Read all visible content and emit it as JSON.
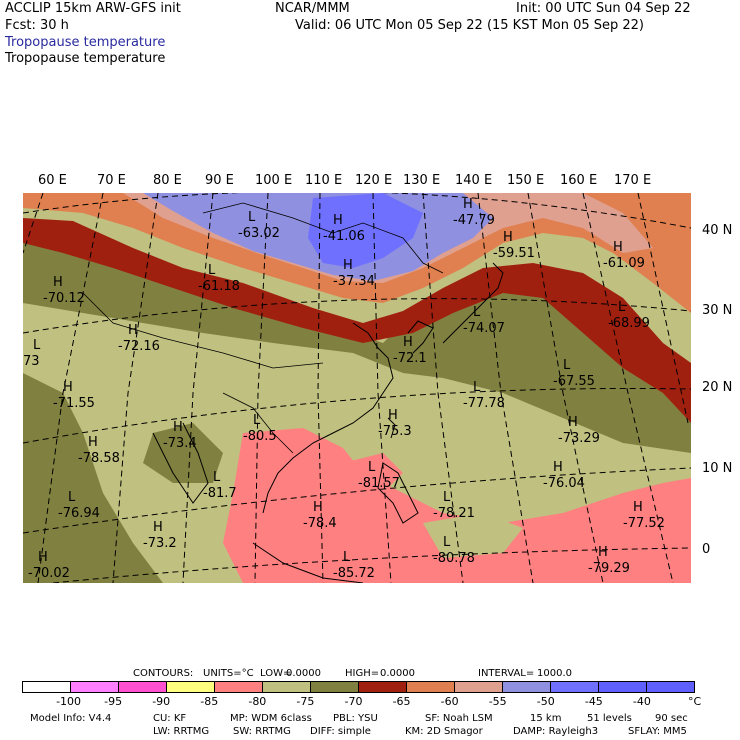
{
  "header": {
    "line1_left": "ACCLIP 15km ARW-GFS init",
    "line1_center": "NCAR/MMM",
    "line1_right": "Init: 00 UTC Sun 04 Sep 22",
    "line2_left": "Fcst:   30 h",
    "line2_right": "Valid: 06 UTC Mon 05 Sep 22 (15 KST Mon 05 Sep 22)",
    "field_title_blue": "Tropopause temperature",
    "field_title_black": "Tropopause temperature"
  },
  "lon_labels": [
    "60 E",
    "70 E",
    "80 E",
    "90 E",
    "100 E",
    "110 E",
    "120 E",
    "130 E",
    "140 E",
    "150 E",
    "160 E",
    "170 E"
  ],
  "lat_labels": [
    "40 N",
    "30 N",
    "20 N",
    "10 N",
    "0"
  ],
  "extrema": [
    {
      "type": "L",
      "value": "-63.02"
    },
    {
      "type": "H",
      "value": "-41.06"
    },
    {
      "type": "H",
      "value": "-37.34"
    },
    {
      "type": "H",
      "value": "-47.79"
    },
    {
      "type": "H",
      "value": "-59.51"
    },
    {
      "type": "H",
      "value": "-61.09"
    },
    {
      "type": "H",
      "value": "-70.12"
    },
    {
      "type": "L",
      "value": "-61.18"
    },
    {
      "type": "L",
      "value": "-68.99"
    },
    {
      "type": "L",
      "value": "-74.07"
    },
    {
      "type": "H",
      "value": "-72.16"
    },
    {
      "type": "L",
      "value": "-67.55"
    },
    {
      "type": "H",
      "value": "-72.1"
    },
    {
      "type": "L",
      "value": "-77.78"
    },
    {
      "type": "H",
      "value": "-71.55"
    },
    {
      "type": "H",
      "value": "-73.29"
    },
    {
      "type": "L",
      "value": "-80.5"
    },
    {
      "type": "H",
      "value": "-75.3"
    },
    {
      "type": "H",
      "value": "-73.4"
    },
    {
      "type": "H",
      "value": "-78.58"
    },
    {
      "type": "H",
      "value": "-76.04"
    },
    {
      "type": "L",
      "value": "-81.57"
    },
    {
      "type": "L",
      "value": "-81.7"
    },
    {
      "type": "L",
      "value": "-76.94"
    },
    {
      "type": "H",
      "value": "-78.4"
    },
    {
      "type": "L",
      "value": "-78.21"
    },
    {
      "type": "H",
      "value": "-77.52"
    },
    {
      "type": "H",
      "value": "-73.2"
    },
    {
      "type": "L",
      "value": "-80.78"
    },
    {
      "type": "H",
      "value": "-70.02"
    },
    {
      "type": "L",
      "value": "-85.72"
    },
    {
      "type": "H",
      "value": "-79.29"
    },
    {
      "type": "L",
      "value": "73"
    }
  ],
  "contour_info": {
    "label": "CONTOURS:",
    "units_label": "UNITS=°C",
    "low_label": "LOW=",
    "low_value": "0.0000",
    "high_label": "HIGH=",
    "high_value": "0.0000",
    "interval_label": "INTERVAL=",
    "interval_value": "1000.0"
  },
  "colorbar": {
    "colors": [
      "#ffffff",
      "#ff80ff",
      "#ff50d0",
      "#ffff80",
      "#ff8080",
      "#c0c080",
      "#808040",
      "#a02010",
      "#e08050",
      "#e0a090",
      "#9090e0",
      "#7070ff",
      "#6060ff",
      "#6060ff"
    ],
    "tick_labels": [
      "-100",
      "-95",
      "-90",
      "-85",
      "-80",
      "-75",
      "-70",
      "-65",
      "-60",
      "-55",
      "-50",
      "-45",
      "-40"
    ],
    "unit": "°C"
  },
  "footer": {
    "model_info": "Model Info: V4.4",
    "cu": "CU: KF",
    "mp": "MP: WDM 6class",
    "pbl": "PBL: YSU",
    "sf": "SF: Noah LSM",
    "res": "15 km",
    "levels": "51 levels",
    "dt": "90 sec",
    "lw": "LW: RRTMG",
    "sw": "SW: RRTMG",
    "diff": "DIFF: simple",
    "km": "KM: 2D Smagor",
    "damp": "DAMP: Rayleigh3",
    "sflay": "SFLAY: MM5"
  }
}
